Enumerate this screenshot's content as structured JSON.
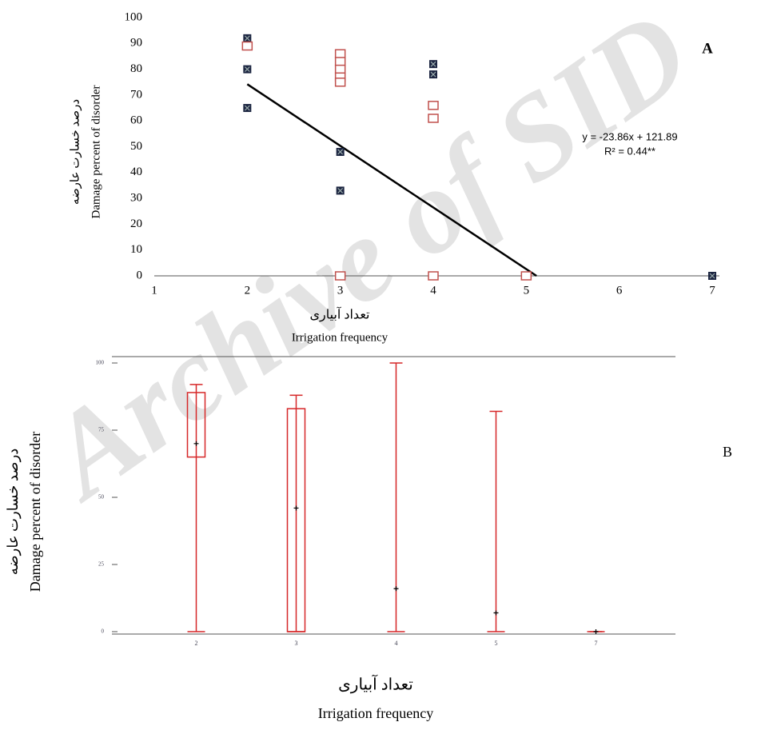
{
  "watermark": "Archive of SID",
  "chart_data": [
    {
      "type": "scatter",
      "label": "A",
      "annotations": [
        "y = -23.86x + 121.89",
        "R² = 0.44**"
      ],
      "y_label": [
        "درصد خسارت عارضه",
        "Damage percent of disorder"
      ],
      "x_label": [
        "تعداد آبیاری",
        "Irrigation frequency"
      ],
      "xlim": [
        1,
        7
      ],
      "xticks": [
        1,
        2,
        3,
        4,
        5,
        6,
        7
      ],
      "ylim": [
        0,
        100
      ],
      "yticks": [
        0,
        10,
        20,
        30,
        40,
        50,
        60,
        70,
        80,
        90,
        100
      ],
      "series": [
        {
          "color": "#1c2541",
          "marker": "crossed-square",
          "x": [
            2,
            2,
            2,
            3,
            3,
            4,
            4,
            7
          ],
          "values": [
            92,
            80,
            65,
            48,
            33,
            82,
            78,
            0
          ]
        },
        {
          "color": "#c0504d",
          "marker": "open-square",
          "x": [
            2,
            3,
            3,
            3,
            3,
            3,
            3,
            4,
            4,
            4,
            5
          ],
          "values": [
            89,
            86,
            83,
            80,
            77,
            75,
            0,
            66,
            61,
            0,
            0
          ]
        }
      ],
      "trendline": {
        "color": "#000000",
        "x": [
          2,
          5.11
        ],
        "values": [
          74.2,
          0
        ]
      }
    },
    {
      "type": "box",
      "label": "B",
      "y_label": [
        "درصد خسارت عارضه",
        "Damage percent of disorder"
      ],
      "x_label": [
        "تعداد آبیاری",
        "Irrigation frequency"
      ],
      "categories": [
        "2",
        "3",
        "4",
        "5",
        "7"
      ],
      "min": [
        0,
        0,
        0,
        0,
        0
      ],
      "q1": [
        65,
        0,
        null,
        null,
        null
      ],
      "q3": [
        89,
        83,
        null,
        null,
        null
      ],
      "max": [
        92,
        88,
        100,
        82,
        0
      ],
      "mean": [
        70,
        46,
        16,
        7,
        0
      ],
      "color": "#d62728",
      "ylim": [
        0,
        100
      ],
      "yticks": [
        0,
        25,
        50,
        75,
        100
      ]
    }
  ]
}
